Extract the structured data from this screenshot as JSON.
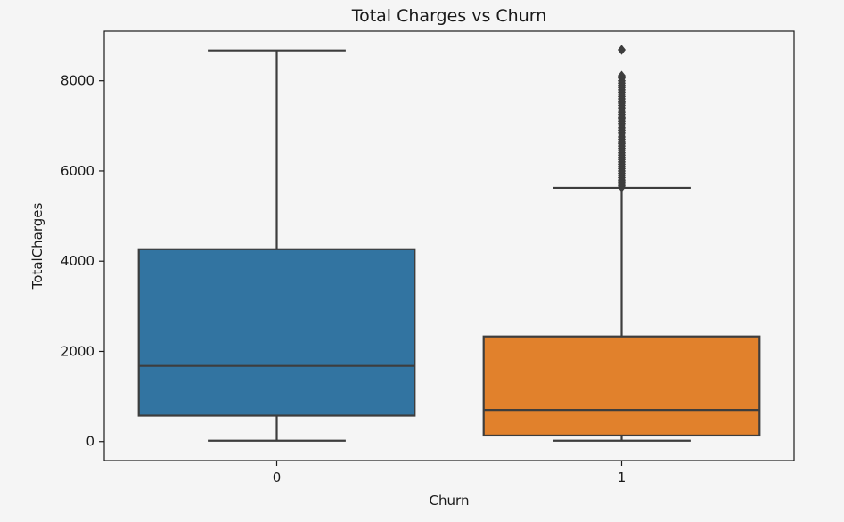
{
  "chart_data": {
    "type": "box",
    "title": "Total Charges vs Churn",
    "xlabel": "Churn",
    "ylabel": "TotalCharges",
    "categories": [
      "0",
      "1"
    ],
    "ylim": [
      -420,
      9100
    ],
    "yticks": [
      0,
      2000,
      4000,
      6000,
      8000
    ],
    "grid": false,
    "legend": "none",
    "boxes": [
      {
        "category": "0",
        "whisker_low": 19,
        "q1": 577,
        "median": 1680,
        "q3": 4265,
        "whisker_high": 8672,
        "outliers": [],
        "color": "#3274a1"
      },
      {
        "category": "1",
        "whisker_low": 19,
        "q1": 134,
        "median": 704,
        "q3": 2331,
        "whisker_high": 5625,
        "outliers": [
          5640,
          5680,
          5720,
          5760,
          5800,
          5850,
          5900,
          5950,
          6000,
          6050,
          6100,
          6150,
          6200,
          6250,
          6300,
          6350,
          6400,
          6450,
          6500,
          6550,
          6600,
          6650,
          6700,
          6750,
          6800,
          6850,
          6900,
          6950,
          7000,
          7050,
          7100,
          7150,
          7200,
          7250,
          7300,
          7350,
          7400,
          7450,
          7500,
          7550,
          7600,
          7650,
          7700,
          7750,
          7800,
          7850,
          7900,
          7950,
          8000,
          8060,
          8110,
          8685
        ],
        "color": "#e1812c"
      }
    ]
  }
}
